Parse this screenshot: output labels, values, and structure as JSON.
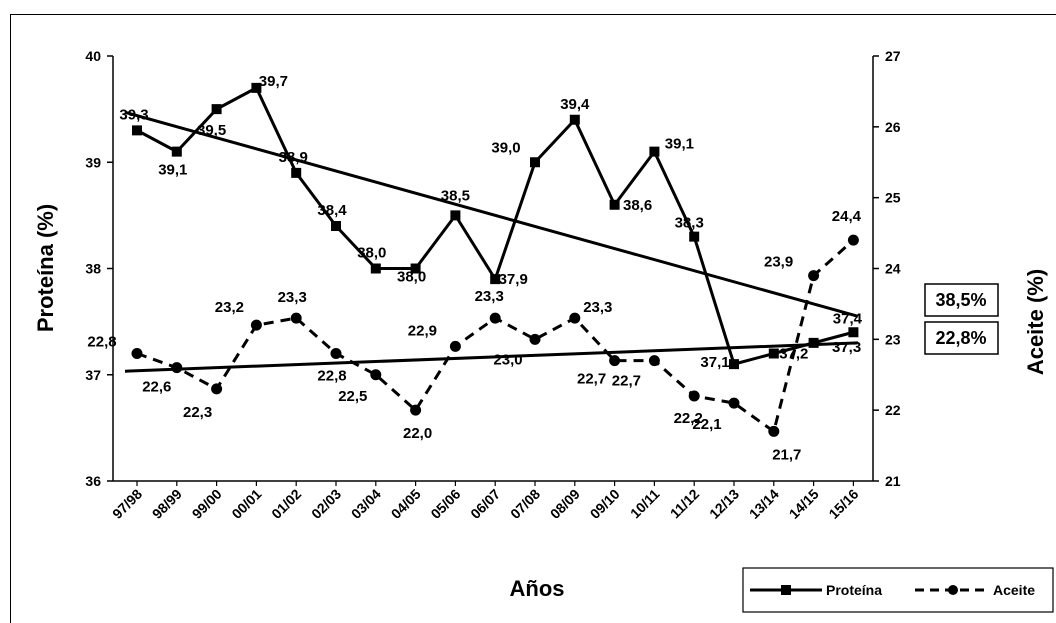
{
  "chart_data": {
    "type": "line",
    "categories": [
      "97/98",
      "98/99",
      "99/00",
      "00/01",
      "01/02",
      "02/03",
      "03/04",
      "04/05",
      "05/06",
      "06/07",
      "07/08",
      "08/09",
      "09/10",
      "10/11",
      "11/12",
      "12/13",
      "13/14",
      "14/15",
      "15/16"
    ],
    "xlabel": "Años",
    "ylabel": "Proteína (%)",
    "y2label": "Aceite (%)",
    "ylim": [
      36,
      40
    ],
    "y2lim": [
      21,
      27
    ],
    "yticks": [
      "36",
      "37",
      "38",
      "39",
      "40"
    ],
    "y2ticks": [
      "21",
      "22",
      "23",
      "24",
      "25",
      "26",
      "27"
    ],
    "grid": false,
    "legend_position": "bottom-right",
    "series": [
      {
        "name": "Proteína",
        "axis": "left",
        "style": "solid",
        "marker": "square",
        "values": [
          39.3,
          39.1,
          39.5,
          39.7,
          38.9,
          38.4,
          38.0,
          38.0,
          38.5,
          37.9,
          39.0,
          39.4,
          38.6,
          39.1,
          38.3,
          37.1,
          37.2,
          37.3,
          37.4
        ],
        "labels": [
          "39,3",
          "39,1",
          "39,5",
          "39,7",
          "38,9",
          "38,4",
          "38,0",
          "38,0",
          "38,5",
          "37,9",
          "39,0",
          "39,4",
          "38,6",
          "39,1",
          "38,3",
          "37,1",
          "37,2",
          "37,3",
          "37,4"
        ]
      },
      {
        "name": "Aceite",
        "axis": "right",
        "style": "dashed",
        "marker": "circle",
        "values": [
          22.8,
          22.6,
          22.3,
          23.2,
          23.3,
          22.8,
          22.5,
          22.0,
          22.9,
          23.3,
          23.0,
          23.3,
          22.7,
          22.7,
          22.2,
          22.1,
          21.7,
          23.9,
          24.4
        ],
        "labels": [
          "22,8",
          "22,6",
          "22,3",
          "23,2",
          "23,3",
          "22,8",
          "22,5",
          "22,0",
          "22,9",
          "23,3",
          "23,0",
          "23,3",
          "22,7",
          "22,7",
          "22,2",
          "22,1",
          "21,7",
          "23,9",
          "24,4"
        ]
      }
    ],
    "trendlines": [
      {
        "series": "Proteína",
        "axis": "left",
        "start": 39.47,
        "end": 37.55
      },
      {
        "series": "Aceite",
        "axis": "right",
        "start": 22.55,
        "end": 22.95
      }
    ],
    "annotations": [
      "38,5%",
      "22,8%"
    ]
  }
}
